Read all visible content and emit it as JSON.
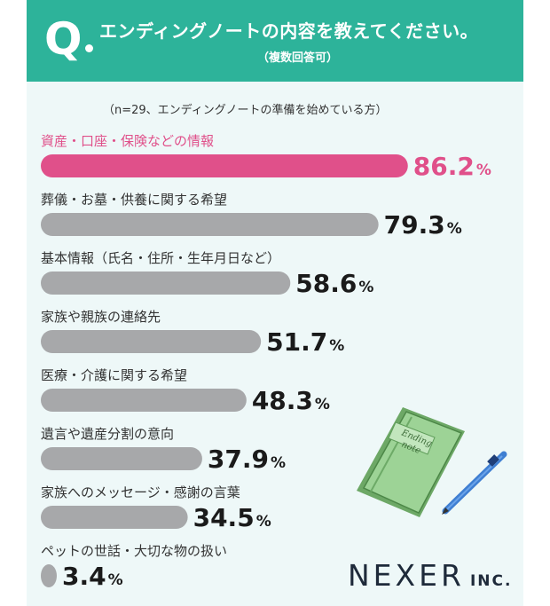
{
  "header": {
    "q_letter": "Q",
    "question": "エンディングノートの内容を教えてください。",
    "subtitle": "（複数回答可）"
  },
  "note": "（n=29、エンディングノートの準備を始めている方）",
  "logo": {
    "name": "NEXER",
    "suffix": "INC."
  },
  "illustration": {
    "book_text_line1": "Ending",
    "book_text_line2": "note"
  },
  "colors": {
    "header": "#2db39a",
    "background": "#eef8f8",
    "highlight": "#e0508a",
    "bar": "#a7a8aa",
    "value_text": "#1a1a1a"
  },
  "chart_data": {
    "type": "bar",
    "orientation": "horizontal",
    "unit": "%",
    "categories": [
      "資産・口座・保険などの情報",
      "葬儀・お墓・供養に関する希望",
      "基本情報（氏名・住所・生年月日など）",
      "家族や親族の連絡先",
      "医療・介護に関する希望",
      "遺言や遺産分割の意向",
      "家族へのメッセージ・感謝の言葉",
      "ペットの世話・大切な物の扱い"
    ],
    "values": [
      86.2,
      79.3,
      58.6,
      51.7,
      48.3,
      37.9,
      34.5,
      3.4
    ],
    "value_labels": [
      "86.2",
      "79.3",
      "58.6",
      "51.7",
      "48.3",
      "37.9",
      "34.5",
      "3.4"
    ],
    "highlight_index": 0,
    "xlim": [
      0,
      100
    ]
  }
}
